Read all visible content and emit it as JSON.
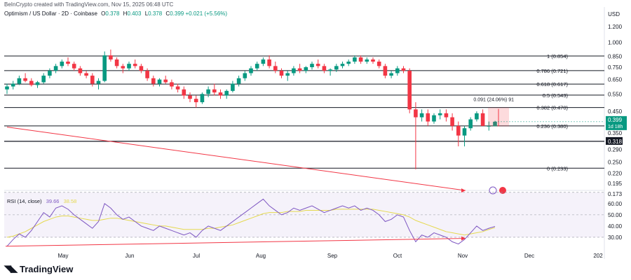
{
  "header": {
    "credit": "BeInCrypto created with TradingView.com, Nov 15, 2025 06:48 UTC",
    "symbol": "Optimism / US Dollar · 2D · Coinbase",
    "o_label": "O",
    "o_val": "0.378",
    "h_label": "H",
    "h_val": "0.403",
    "l_label": "L",
    "l_val": "0.378",
    "c_label": "C",
    "c_val": "0.399",
    "change": "+0.021 (+5.56%)",
    "currency": "USD"
  },
  "footer": {
    "logo_text": "TradingView"
  },
  "colors": {
    "up": "#089981",
    "down": "#f23645",
    "rsi": "#7e57c2",
    "rsi_ma": "#e5d94f",
    "divergence": "#f23645"
  },
  "chart_data": [
    {
      "type": "candlestick",
      "y_ticks": [
        "1.200",
        "1.000",
        "0.850",
        "0.750",
        "0.650",
        "0.550",
        "0.450",
        "0.350",
        "0.290",
        "0.250",
        "0.220",
        "0.195",
        "0.173"
      ],
      "x_ticks": [
        "May",
        "Jun",
        "Jul",
        "Aug",
        "Sep",
        "Oct",
        "Nov",
        "Dec",
        "202"
      ],
      "fib_levels": [
        {
          "label": "1 (0.854)",
          "value": 0.854
        },
        {
          "label": "0.786 (0.721)",
          "value": 0.721
        },
        {
          "label": "0.618 (0.617)",
          "value": 0.617
        },
        {
          "label": "0.5 (0.543)",
          "value": 0.543
        },
        {
          "label": "0.382 (0.470)",
          "value": 0.47
        },
        {
          "label": "0.236 (0.380)",
          "value": 0.38
        },
        {
          "label": "0 (0.233)",
          "value": 0.233
        }
      ],
      "support_line": {
        "label": "0.318",
        "value": 0.318
      },
      "last_price": {
        "value": "0.399",
        "countdown": "1d 18h"
      },
      "measure_label": "0.091 (24.06%) 91",
      "candles": [
        [
          0.58,
          0.62,
          0.55,
          0.6
        ],
        [
          0.6,
          0.64,
          0.58,
          0.62
        ],
        [
          0.62,
          0.68,
          0.61,
          0.66
        ],
        [
          0.66,
          0.7,
          0.63,
          0.64
        ],
        [
          0.64,
          0.66,
          0.6,
          0.61
        ],
        [
          0.61,
          0.64,
          0.59,
          0.63
        ],
        [
          0.63,
          0.7,
          0.62,
          0.68
        ],
        [
          0.68,
          0.74,
          0.66,
          0.72
        ],
        [
          0.72,
          0.78,
          0.7,
          0.76
        ],
        [
          0.76,
          0.82,
          0.74,
          0.8
        ],
        [
          0.8,
          0.84,
          0.76,
          0.78
        ],
        [
          0.78,
          0.8,
          0.72,
          0.74
        ],
        [
          0.74,
          0.76,
          0.68,
          0.7
        ],
        [
          0.7,
          0.72,
          0.66,
          0.68
        ],
        [
          0.68,
          0.7,
          0.6,
          0.62
        ],
        [
          0.62,
          0.66,
          0.58,
          0.64
        ],
        [
          0.64,
          0.9,
          0.63,
          0.86
        ],
        [
          0.86,
          0.92,
          0.8,
          0.82
        ],
        [
          0.82,
          0.84,
          0.74,
          0.76
        ],
        [
          0.76,
          0.78,
          0.7,
          0.74
        ],
        [
          0.74,
          0.8,
          0.72,
          0.78
        ],
        [
          0.78,
          0.82,
          0.74,
          0.76
        ],
        [
          0.76,
          0.78,
          0.7,
          0.72
        ],
        [
          0.72,
          0.74,
          0.64,
          0.66
        ],
        [
          0.66,
          0.68,
          0.6,
          0.62
        ],
        [
          0.62,
          0.66,
          0.6,
          0.65
        ],
        [
          0.65,
          0.68,
          0.62,
          0.63
        ],
        [
          0.63,
          0.65,
          0.58,
          0.6
        ],
        [
          0.6,
          0.62,
          0.56,
          0.58
        ],
        [
          0.58,
          0.6,
          0.52,
          0.54
        ],
        [
          0.54,
          0.56,
          0.5,
          0.52
        ],
        [
          0.52,
          0.54,
          0.47,
          0.5
        ],
        [
          0.5,
          0.56,
          0.49,
          0.55
        ],
        [
          0.55,
          0.6,
          0.53,
          0.58
        ],
        [
          0.58,
          0.62,
          0.54,
          0.56
        ],
        [
          0.56,
          0.58,
          0.52,
          0.54
        ],
        [
          0.54,
          0.58,
          0.52,
          0.57
        ],
        [
          0.57,
          0.64,
          0.56,
          0.62
        ],
        [
          0.62,
          0.68,
          0.6,
          0.66
        ],
        [
          0.66,
          0.72,
          0.64,
          0.7
        ],
        [
          0.7,
          0.76,
          0.68,
          0.74
        ],
        [
          0.74,
          0.8,
          0.72,
          0.78
        ],
        [
          0.78,
          0.84,
          0.76,
          0.82
        ],
        [
          0.82,
          0.86,
          0.74,
          0.76
        ],
        [
          0.76,
          0.8,
          0.7,
          0.72
        ],
        [
          0.72,
          0.74,
          0.66,
          0.68
        ],
        [
          0.68,
          0.72,
          0.64,
          0.7
        ],
        [
          0.7,
          0.76,
          0.68,
          0.74
        ],
        [
          0.74,
          0.78,
          0.7,
          0.72
        ],
        [
          0.72,
          0.76,
          0.7,
          0.75
        ],
        [
          0.75,
          0.8,
          0.73,
          0.78
        ],
        [
          0.78,
          0.82,
          0.74,
          0.76
        ],
        [
          0.76,
          0.78,
          0.7,
          0.72
        ],
        [
          0.72,
          0.74,
          0.68,
          0.73
        ],
        [
          0.73,
          0.78,
          0.71,
          0.76
        ],
        [
          0.76,
          0.8,
          0.74,
          0.78
        ],
        [
          0.78,
          0.82,
          0.76,
          0.8
        ],
        [
          0.8,
          0.86,
          0.78,
          0.84
        ],
        [
          0.84,
          0.86,
          0.78,
          0.8
        ],
        [
          0.8,
          0.84,
          0.78,
          0.82
        ],
        [
          0.82,
          0.84,
          0.78,
          0.8
        ],
        [
          0.8,
          0.82,
          0.74,
          0.76
        ],
        [
          0.76,
          0.78,
          0.66,
          0.68
        ],
        [
          0.68,
          0.72,
          0.66,
          0.7
        ],
        [
          0.7,
          0.76,
          0.68,
          0.74
        ],
        [
          0.74,
          0.76,
          0.7,
          0.72
        ],
        [
          0.72,
          0.74,
          0.44,
          0.46
        ],
        [
          0.46,
          0.5,
          0.23,
          0.42
        ],
        [
          0.42,
          0.46,
          0.4,
          0.44
        ],
        [
          0.44,
          0.46,
          0.38,
          0.4
        ],
        [
          0.4,
          0.44,
          0.39,
          0.43
        ],
        [
          0.43,
          0.46,
          0.41,
          0.44
        ],
        [
          0.44,
          0.46,
          0.4,
          0.42
        ],
        [
          0.42,
          0.44,
          0.36,
          0.38
        ],
        [
          0.38,
          0.4,
          0.3,
          0.34
        ],
        [
          0.34,
          0.38,
          0.3,
          0.37
        ],
        [
          0.37,
          0.42,
          0.36,
          0.41
        ],
        [
          0.41,
          0.45,
          0.4,
          0.44
        ],
        [
          0.44,
          0.46,
          0.38,
          0.38
        ],
        [
          0.38,
          0.4,
          0.36,
          0.38
        ],
        [
          0.378,
          0.403,
          0.378,
          0.399
        ]
      ],
      "divergence_label": "price lower-low trendline"
    },
    {
      "type": "line",
      "title": "RSI (14, close)",
      "rsi_value": "39.66",
      "rsi_ma_value": "38.58",
      "y_ticks": [
        "60.00",
        "50.00",
        "40.00",
        "30.00"
      ],
      "rsi": [
        22,
        28,
        33,
        30,
        36,
        44,
        52,
        48,
        56,
        58,
        55,
        50,
        46,
        42,
        38,
        44,
        60,
        56,
        50,
        46,
        48,
        44,
        40,
        38,
        36,
        40,
        38,
        36,
        34,
        32,
        34,
        30,
        36,
        40,
        38,
        36,
        40,
        44,
        48,
        52,
        56,
        60,
        64,
        58,
        54,
        50,
        52,
        56,
        54,
        56,
        58,
        55,
        52,
        54,
        56,
        58,
        56,
        58,
        54,
        56,
        54,
        50,
        44,
        46,
        50,
        48,
        36,
        26,
        32,
        30,
        34,
        32,
        30,
        26,
        24,
        28,
        34,
        40,
        36,
        38,
        39.66
      ],
      "rsi_ma": [
        30,
        31,
        33,
        35,
        38,
        41,
        44,
        46,
        48,
        49,
        49,
        48,
        47,
        46,
        45,
        45,
        46,
        47,
        47,
        46,
        45,
        44,
        43,
        42,
        41,
        40,
        40,
        39,
        38,
        37,
        37,
        37,
        37,
        38,
        38,
        39,
        40,
        41,
        43,
        45,
        47,
        49,
        51,
        52,
        52,
        52,
        53,
        53,
        53,
        54,
        54,
        54,
        54,
        54,
        55,
        55,
        55,
        55,
        55,
        55,
        55,
        54,
        53,
        52,
        51,
        50,
        48,
        45,
        43,
        41,
        39,
        37,
        35,
        34,
        33,
        32,
        33,
        34,
        35,
        37,
        38.58
      ]
    }
  ]
}
